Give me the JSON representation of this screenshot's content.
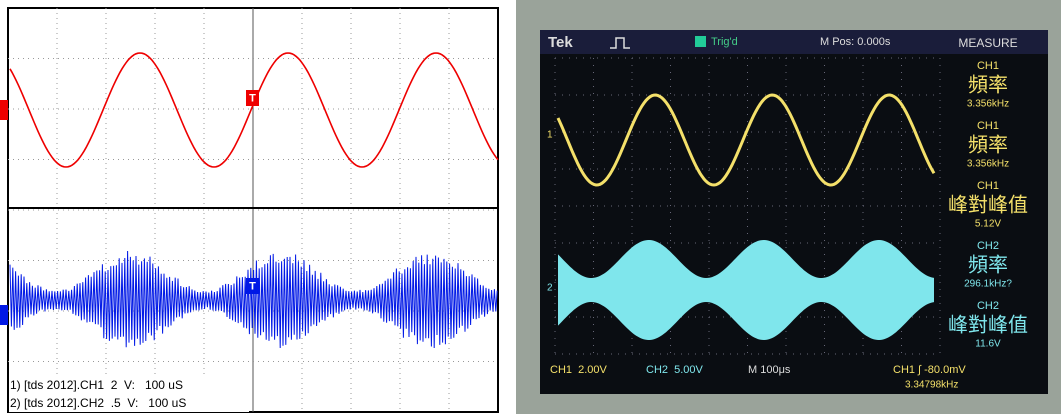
{
  "left_scope": {
    "trigger_markers": [
      "T",
      "T"
    ],
    "captions": [
      "1) [tds 2012].CH1  2  V:   100 uS",
      "2) [tds 2012].CH2  .5  V:   100 uS"
    ]
  },
  "right_scope": {
    "header": {
      "brand": "Tek",
      "trigger_state": "Trig'd",
      "position": "M Pos: 0.000s",
      "menu_title": "MEASURE"
    },
    "channel_markers": [
      "1",
      "2"
    ],
    "measurements": [
      {
        "channel": "CH1",
        "label": "頻率",
        "value": "3.356kHz"
      },
      {
        "channel": "CH1",
        "label": "頻率",
        "value": "3.356kHz"
      },
      {
        "channel": "CH1",
        "label": "峰對峰值",
        "value": "5.12V"
      },
      {
        "channel": "CH2",
        "label": "頻率",
        "value": "296.1kHz?"
      },
      {
        "channel": "CH2",
        "label": "峰對峰值",
        "value": "11.6V"
      }
    ],
    "footer": {
      "ch1_scale": "CH1  2.00V",
      "ch2_scale": "CH2  5.00V",
      "time_scale": "M 100μs",
      "trigger": "CH1 ∫ -80.0mV",
      "frequency": "3.34798kHz"
    }
  }
}
